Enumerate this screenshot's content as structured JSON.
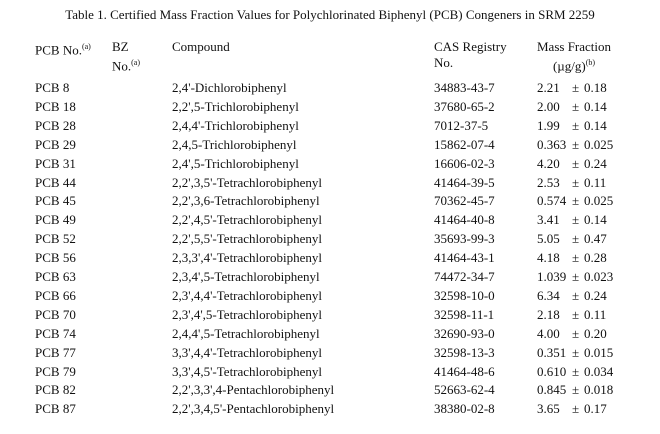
{
  "title": "Table 1.  Certified Mass Fraction Values for Polychlorinated Biphenyl (PCB) Congeners in SRM 2259",
  "headers": {
    "pcb_no": "PCB No.",
    "pcb_no_note": "(a)",
    "bz_line1": "BZ",
    "bz_line2": "No.",
    "bz_note": "(a)",
    "compound": "Compound",
    "cas_line1": "CAS Registry",
    "cas_line2": "No.",
    "mass_line1": "Mass Fraction",
    "mass_line2": "(µg/g)",
    "mass_note": "(b)"
  },
  "pm": "±",
  "rows": [
    {
      "pcb": "PCB 8",
      "compound": "2,4'-Dichlorobiphenyl",
      "cas": "34883-43-7",
      "value": "2.21",
      "unc": "0.18"
    },
    {
      "pcb": "PCB 18",
      "compound": "2,2',5-Trichlorobiphenyl",
      "cas": "37680-65-2",
      "value": "2.00",
      "unc": "0.14"
    },
    {
      "pcb": "PCB 28",
      "compound": "2,4,4'-Trichlorobiphenyl",
      "cas": "7012-37-5",
      "value": "1.99",
      "unc": "0.14"
    },
    {
      "pcb": "PCB 29",
      "compound": "2,4,5-Trichlorobiphenyl",
      "cas": "15862-07-4",
      "value": "0.363",
      "unc": "0.025"
    },
    {
      "pcb": "PCB 31",
      "compound": "2,4',5-Trichlorobiphenyl",
      "cas": "16606-02-3",
      "value": "4.20",
      "unc": "0.24"
    },
    {
      "pcb": "PCB 44",
      "compound": "2,2',3,5'-Tetrachlorobiphenyl",
      "cas": "41464-39-5",
      "value": "2.53",
      "unc": "0.11"
    },
    {
      "pcb": "PCB 45",
      "compound": "2,2',3,6-Tetrachlorobiphenyl",
      "cas": "70362-45-7",
      "value": "0.574",
      "unc": "0.025"
    },
    {
      "pcb": "PCB 49",
      "compound": "2,2',4,5'-Tetrachlorobiphenyl",
      "cas": "41464-40-8",
      "value": "3.41",
      "unc": "0.14"
    },
    {
      "pcb": "PCB 52",
      "compound": "2,2',5,5'-Tetrachlorobiphenyl",
      "cas": "35693-99-3",
      "value": "5.05",
      "unc": "0.47"
    },
    {
      "pcb": "PCB 56",
      "compound": "2,3,3',4'-Tetrachlorobiphenyl",
      "cas": "41464-43-1",
      "value": "4.18",
      "unc": "0.28"
    },
    {
      "pcb": "PCB 63",
      "compound": "2,3,4',5-Tetrachlorobiphenyl",
      "cas": "74472-34-7",
      "value": "1.039",
      "unc": "0.023"
    },
    {
      "pcb": "PCB 66",
      "compound": "2,3',4,4'-Tetrachlorobiphenyl",
      "cas": "32598-10-0",
      "value": "6.34",
      "unc": "0.24"
    },
    {
      "pcb": "PCB 70",
      "compound": "2,3',4',5-Tetrachlorobiphenyl",
      "cas": "32598-11-1",
      "value": "2.18",
      "unc": "0.11"
    },
    {
      "pcb": "PCB 74",
      "compound": "2,4,4',5-Tetrachlorobiphenyl",
      "cas": "32690-93-0",
      "value": "4.00",
      "unc": "0.20"
    },
    {
      "pcb": "PCB 77",
      "compound": "3,3',4,4'-Tetrachlorobiphenyl",
      "cas": "32598-13-3",
      "value": "0.351",
      "unc": "0.015"
    },
    {
      "pcb": "PCB 79",
      "compound": "3,3',4,5'-Tetrachlorobiphenyl",
      "cas": "41464-48-6",
      "value": "0.610",
      "unc": "0.034"
    },
    {
      "pcb": "PCB 82",
      "compound": "2,2',3,3',4-Pentachlorobiphenyl",
      "cas": "52663-62-4",
      "value": "0.845",
      "unc": "0.018"
    },
    {
      "pcb": "PCB 87",
      "compound": "2,2',3,4,5'-Pentachlorobiphenyl",
      "cas": "38380-02-8",
      "value": "3.65",
      "unc": "0.17"
    }
  ]
}
